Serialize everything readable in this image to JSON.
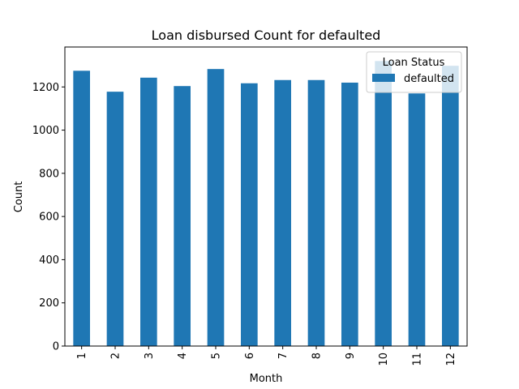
{
  "chart_data": {
    "type": "bar",
    "title": "Loan disbursed Count for defaulted",
    "xlabel": "Month",
    "ylabel": "Count",
    "categories": [
      "1",
      "2",
      "3",
      "4",
      "5",
      "6",
      "7",
      "8",
      "9",
      "10",
      "11",
      "12"
    ],
    "series": [
      {
        "name": "defaulted",
        "color": "#1f77b4",
        "values": [
          1275,
          1178,
          1243,
          1204,
          1283,
          1217,
          1232,
          1232,
          1220,
          1320,
          1170,
          1298
        ]
      }
    ],
    "ylim": [
      0,
      1385
    ],
    "yticks": [
      0,
      200,
      400,
      600,
      800,
      1000,
      1200
    ],
    "legend": {
      "title": "Loan Status",
      "placement": "top-right"
    },
    "grid": false
  }
}
